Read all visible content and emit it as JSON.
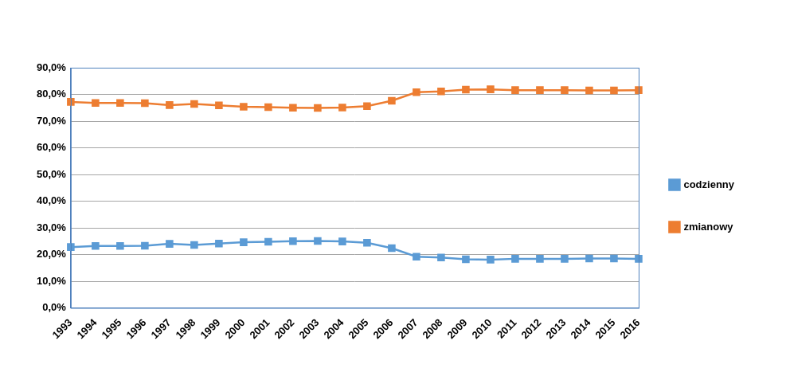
{
  "chart_data": {
    "type": "line",
    "categories": [
      "1993",
      "1994",
      "1995",
      "1996",
      "1997",
      "1998",
      "1999",
      "2000",
      "2001",
      "2002",
      "2003",
      "2004",
      "2005",
      "2006",
      "2007",
      "2008",
      "2009",
      "2010",
      "2011",
      "2012",
      "2013",
      "2014",
      "2015",
      "2016"
    ],
    "series": [
      {
        "name": "codzienny",
        "color": "#5b9bd5",
        "marker": "square",
        "line_style": "solid",
        "values": [
          22.8,
          23.2,
          23.2,
          23.3,
          24.0,
          23.6,
          24.1,
          24.6,
          24.8,
          25.0,
          25.1,
          24.9,
          24.4,
          22.4,
          19.2,
          18.9,
          18.2,
          18.1,
          18.4,
          18.4,
          18.4,
          18.5,
          18.5,
          18.4
        ]
      },
      {
        "name": "zmianowy",
        "color": "#ed7d31",
        "marker": "square",
        "line_style": "solid",
        "values": [
          77.2,
          76.8,
          76.8,
          76.7,
          76.0,
          76.4,
          75.9,
          75.4,
          75.2,
          75.0,
          74.9,
          75.1,
          75.6,
          77.6,
          80.8,
          81.1,
          81.8,
          81.9,
          81.6,
          81.6,
          81.6,
          81.5,
          81.5,
          81.6
        ]
      }
    ],
    "ylim": [
      0,
      90
    ],
    "yticks": [
      {
        "value": 0,
        "label": "0,0%"
      },
      {
        "value": 10,
        "label": "10,0%"
      },
      {
        "value": 20,
        "label": "20,0%"
      },
      {
        "value": 30,
        "label": "30,0%"
      },
      {
        "value": 40,
        "label": "40,0%"
      },
      {
        "value": 50,
        "label": "50,0%"
      },
      {
        "value": 60,
        "label": "60,0%"
      },
      {
        "value": 70,
        "label": "70,0%"
      },
      {
        "value": 80,
        "label": "80,0%"
      },
      {
        "value": 90,
        "label": "90,0%"
      }
    ],
    "grid": true,
    "legend": "right"
  }
}
